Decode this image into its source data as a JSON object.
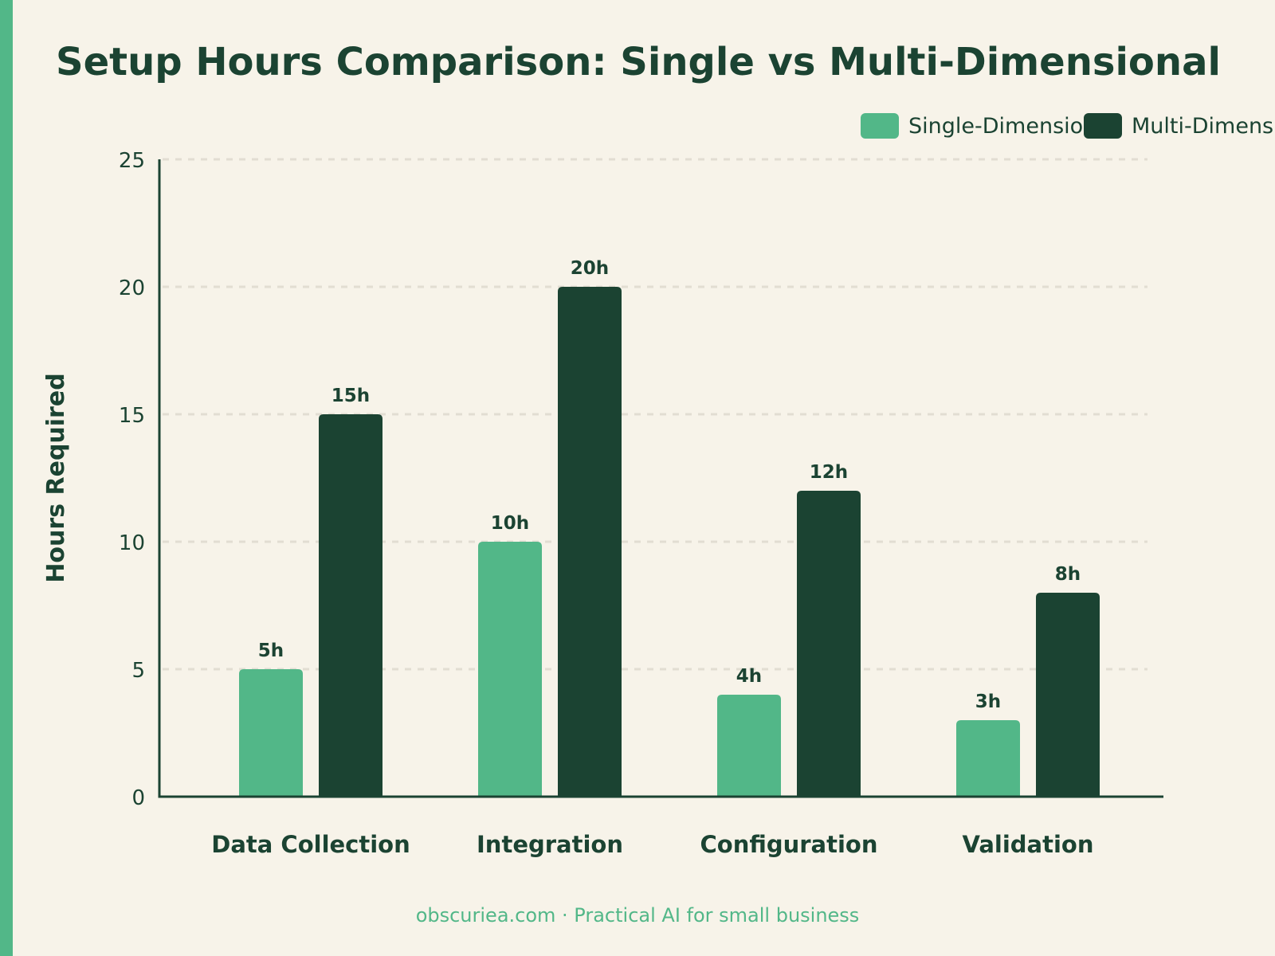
{
  "colors": {
    "background": "#f7f3e9",
    "accent": "#52b788",
    "dark": "#1b4332",
    "grid": "#e2ddd2"
  },
  "chart_data": {
    "type": "bar",
    "title": "Setup Hours Comparison: Single vs Multi-Dimensional",
    "xlabel": "",
    "ylabel": "Hours Required",
    "categories": [
      "Data Collection",
      "Integration",
      "Configuration",
      "Validation"
    ],
    "series": [
      {
        "name": "Single-Dimensional",
        "color": "#52b788",
        "values": [
          5,
          10,
          4,
          3
        ],
        "labels": [
          "5h",
          "10h",
          "4h",
          "3h"
        ]
      },
      {
        "name": "Multi-Dimensional",
        "color": "#1b4332",
        "values": [
          15,
          20,
          12,
          8
        ],
        "labels": [
          "15h",
          "20h",
          "12h",
          "8h"
        ]
      }
    ],
    "ylim": [
      0,
      25
    ],
    "yticks": [
      0,
      5,
      10,
      15,
      20,
      25
    ],
    "grid": true,
    "legend_position": "top-right"
  },
  "footer": {
    "credit": "obscuriea.com · Practical AI for small business"
  }
}
